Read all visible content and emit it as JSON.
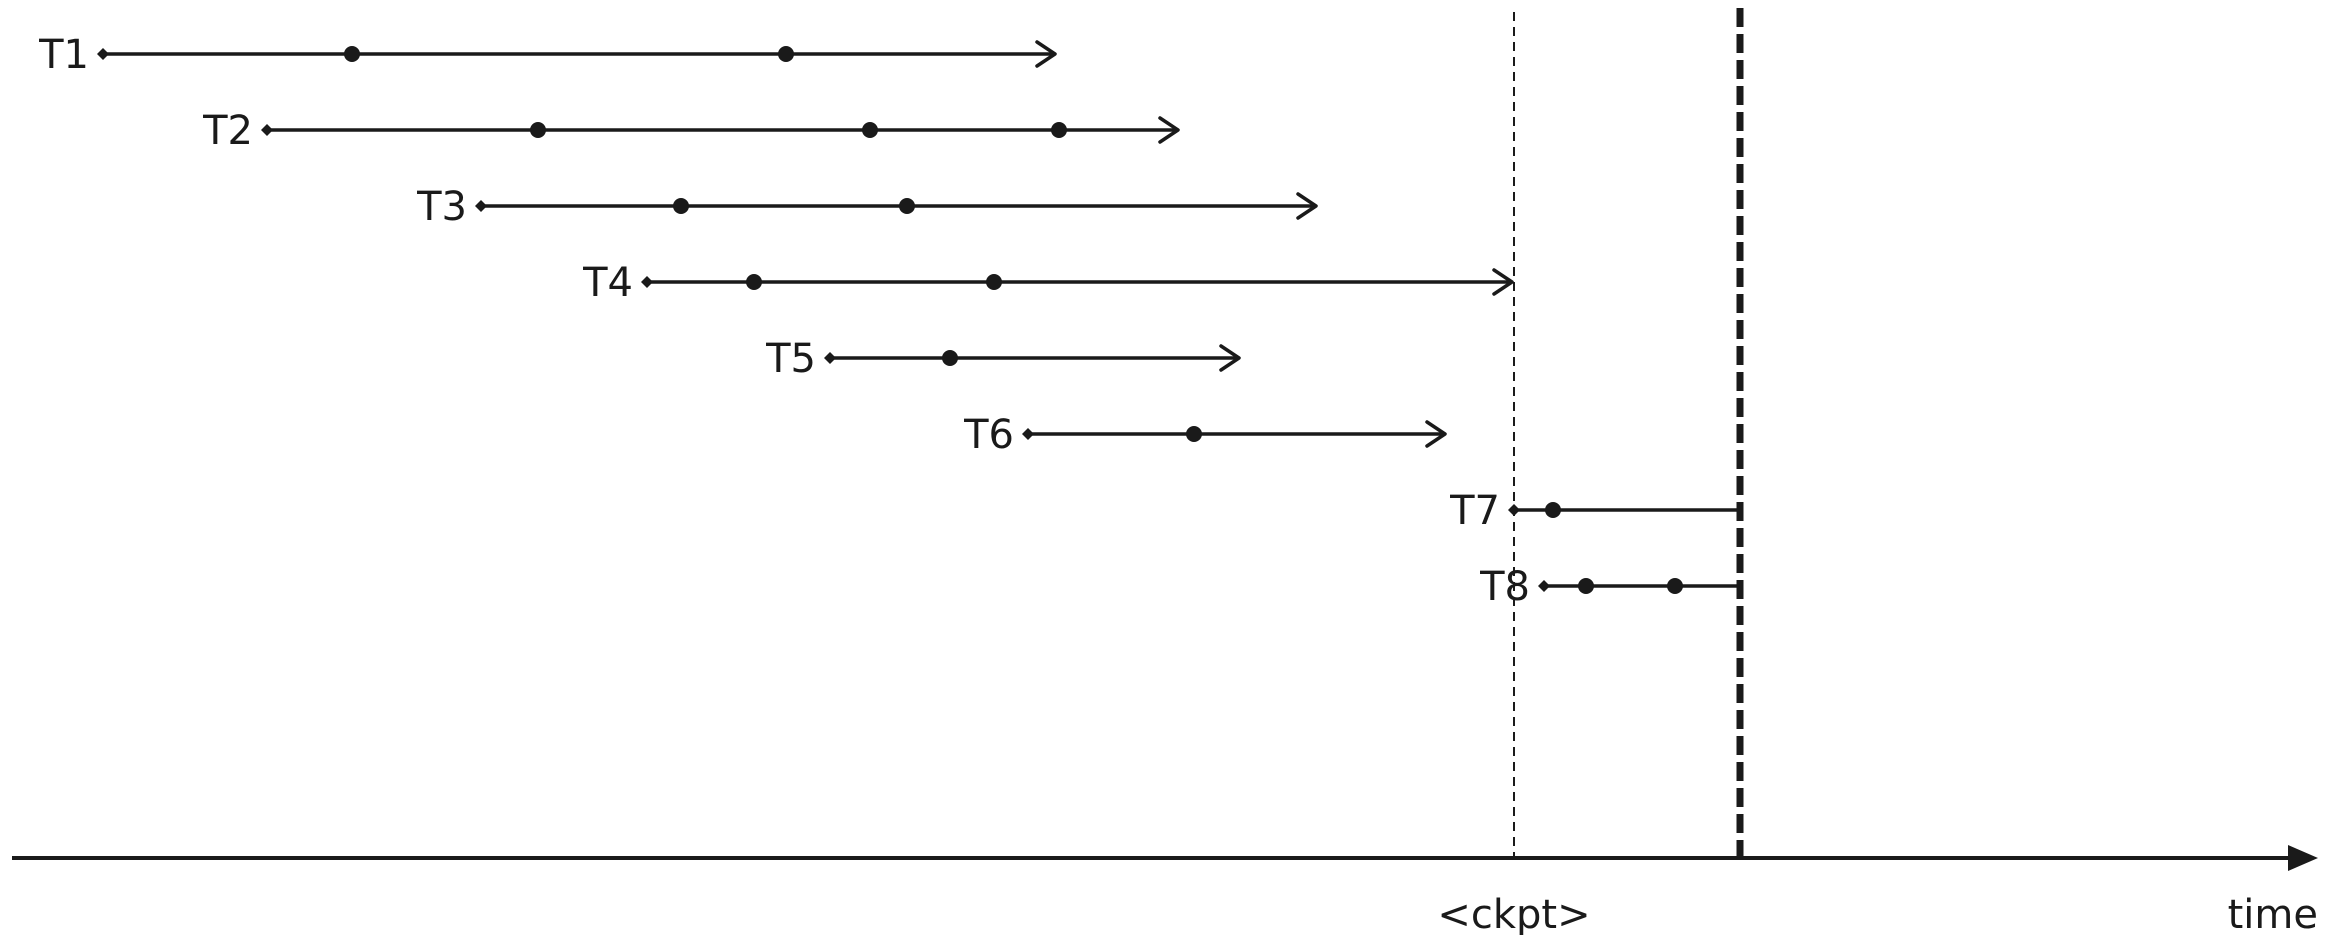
{
  "colors": {
    "ink": "#1a1a1a",
    "background": "#ffffff"
  },
  "transactions": [
    {
      "label": "T1",
      "start": 103,
      "events": [
        352,
        786
      ],
      "end": 1055,
      "arrow": true
    },
    {
      "label": "T2",
      "start": 267,
      "events": [
        538,
        870,
        1059
      ],
      "end": 1178,
      "arrow": true
    },
    {
      "label": "T3",
      "start": 481,
      "events": [
        681,
        907
      ],
      "end": 1316,
      "arrow": true
    },
    {
      "label": "T4",
      "start": 647,
      "events": [
        754,
        994
      ],
      "end": 1512,
      "arrow": true
    },
    {
      "label": "T5",
      "start": 830,
      "events": [
        950
      ],
      "end": 1239,
      "arrow": true
    },
    {
      "label": "T6",
      "start": 1028,
      "events": [
        1194
      ],
      "end": 1445,
      "arrow": true
    },
    {
      "label": "T7",
      "start": 1514,
      "events": [
        1553
      ],
      "end": 1740,
      "arrow": false
    },
    {
      "label": "T8",
      "start": 1544,
      "events": [
        1586,
        1675
      ],
      "end": 1740,
      "arrow": false
    }
  ],
  "time_axis": {
    "label": "time",
    "checkpoint_label": "<ckpt>",
    "checkpoint_at": 1514,
    "crash_at": 1740
  }
}
